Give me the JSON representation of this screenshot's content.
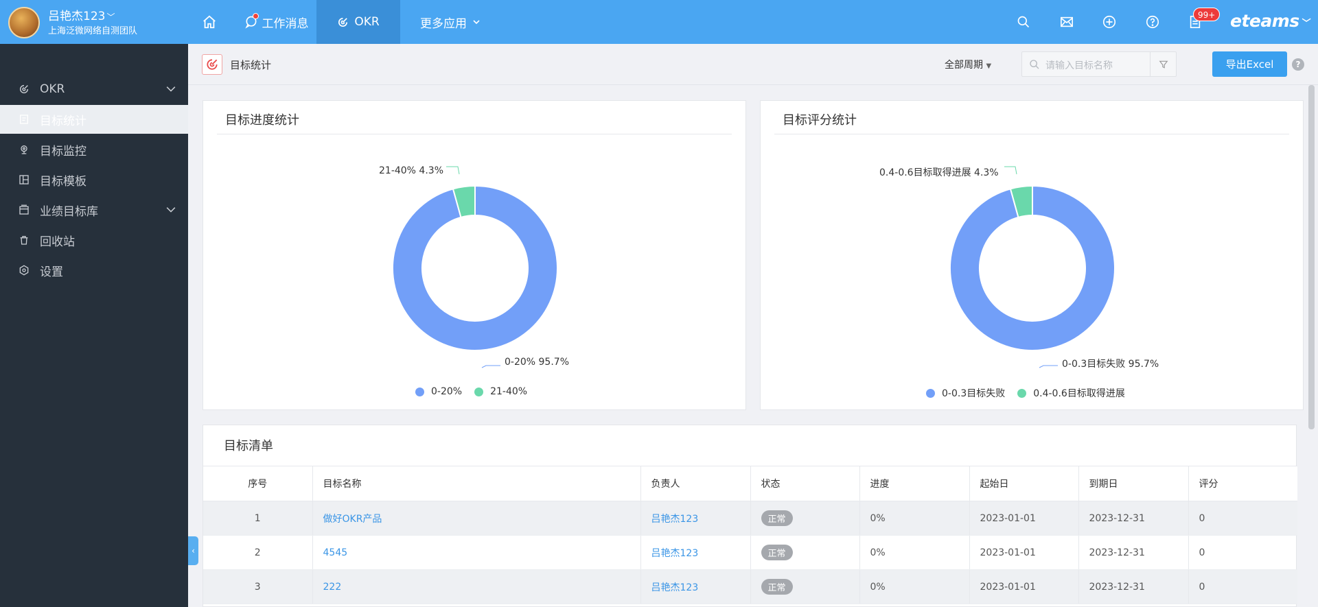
{
  "user": {
    "name": "吕艳杰123",
    "team": "上海泛微网络自测团队"
  },
  "topnav": {
    "msg_label": "工作消息",
    "okr_label": "OKR",
    "more_label": "更多应用",
    "badge": "99+",
    "brand": "eteams"
  },
  "sidebar": {
    "items": [
      {
        "label": "OKR",
        "icon": "okr-icon"
      },
      {
        "label": "目标统计",
        "icon": "stats-icon"
      },
      {
        "label": "目标监控",
        "icon": "monitor-icon"
      },
      {
        "label": "目标模板",
        "icon": "template-icon"
      },
      {
        "label": "业绩目标库",
        "icon": "library-icon"
      },
      {
        "label": "回收站",
        "icon": "trash-icon"
      },
      {
        "label": "设置",
        "icon": "gear-icon"
      }
    ]
  },
  "subheader": {
    "title": "目标统计",
    "period": "全部周期",
    "search_placeholder": "请输入目标名称",
    "export_label": "导出Excel",
    "help": "?"
  },
  "charts": {
    "progress": {
      "title": "目标进度统计"
    },
    "score": {
      "title": "目标评分统计"
    }
  },
  "colors": {
    "blue": "#729ff8",
    "green": "#6ad8ab",
    "accent": "#4aa6f2"
  },
  "chart_data": [
    {
      "type": "pie",
      "title": "目标进度统计",
      "categories": [
        "0-20%",
        "21-40%"
      ],
      "values": [
        95.7,
        4.3
      ],
      "labels": [
        "0-20% 95.7%",
        "21-40% 4.3%"
      ],
      "legend": "bottom"
    },
    {
      "type": "pie",
      "title": "目标评分统计",
      "categories": [
        "0-0.3目标失败",
        "0.4-0.6目标取得进展"
      ],
      "values": [
        95.7,
        4.3
      ],
      "labels": [
        "0-0.3目标失败 95.7%",
        "0.4-0.6目标取得进展 4.3%"
      ],
      "legend": "bottom"
    }
  ],
  "table": {
    "title": "目标清单",
    "headers": [
      "序号",
      "目标名称",
      "负责人",
      "状态",
      "进度",
      "起始日",
      "到期日",
      "评分"
    ],
    "rows": [
      [
        "1",
        "做好OKR产品",
        "吕艳杰123",
        "正常",
        "0%",
        "2023-01-01",
        "2023-12-31",
        "0"
      ],
      [
        "2",
        "4545",
        "吕艳杰123",
        "正常",
        "0%",
        "2023-01-01",
        "2023-12-31",
        "0"
      ],
      [
        "3",
        "222",
        "吕艳杰123",
        "正常",
        "0%",
        "2023-01-01",
        "2023-12-31",
        "0"
      ]
    ]
  }
}
